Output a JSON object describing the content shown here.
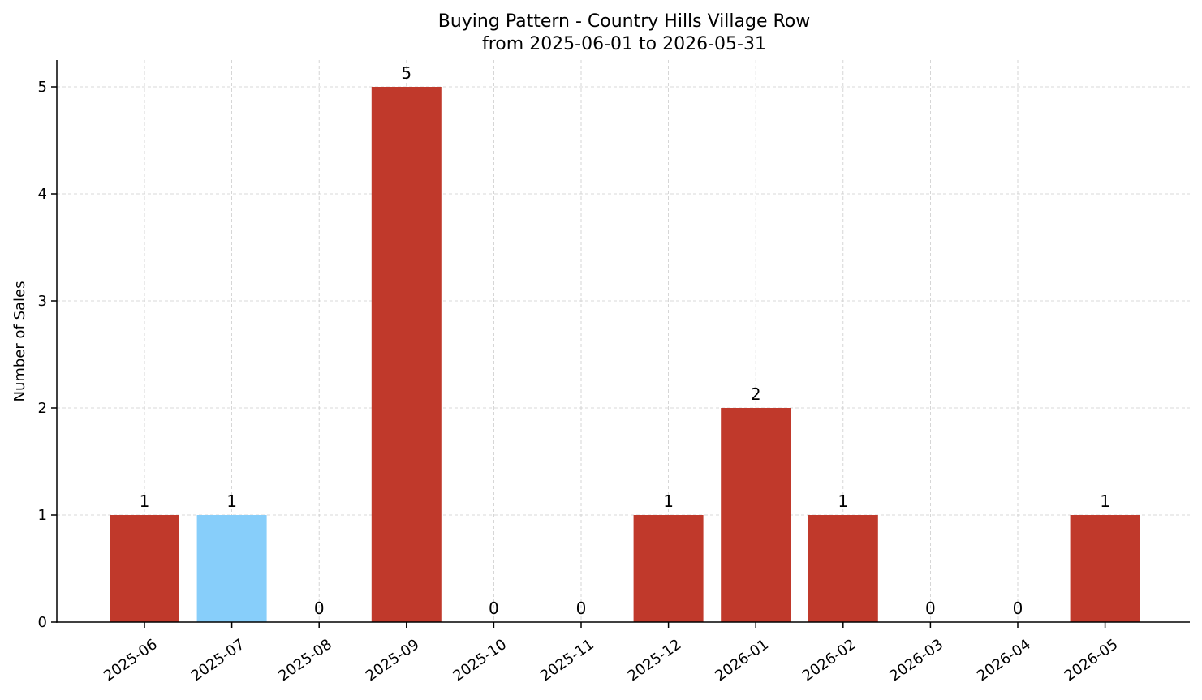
{
  "chart_data": {
    "type": "bar",
    "title": "Buying Pattern - Country Hills Village Row",
    "subtitle": "from 2025-06-01 to 2026-05-31",
    "xlabel": "",
    "ylabel": "Number of Sales",
    "categories": [
      "2025-06",
      "2025-07",
      "2025-08",
      "2025-09",
      "2025-10",
      "2025-11",
      "2025-12",
      "2026-01",
      "2026-02",
      "2026-03",
      "2026-04",
      "2026-05"
    ],
    "values": [
      1,
      1,
      0,
      5,
      0,
      0,
      1,
      2,
      1,
      0,
      0,
      1
    ],
    "value_labels": [
      "1",
      "1",
      "0",
      "5",
      "0",
      "0",
      "1",
      "2",
      "1",
      "0",
      "0",
      "1"
    ],
    "bar_colors": [
      "#c0392b",
      "#87cefa",
      "#c0392b",
      "#c0392b",
      "#c0392b",
      "#c0392b",
      "#c0392b",
      "#c0392b",
      "#c0392b",
      "#c0392b",
      "#c0392b",
      "#c0392b"
    ],
    "yticks": [
      0,
      1,
      2,
      3,
      4,
      5
    ],
    "ytick_labels": [
      "0",
      "1",
      "2",
      "3",
      "4",
      "5"
    ],
    "ylim": [
      0,
      5.25
    ],
    "grid": true,
    "legend": "none"
  }
}
